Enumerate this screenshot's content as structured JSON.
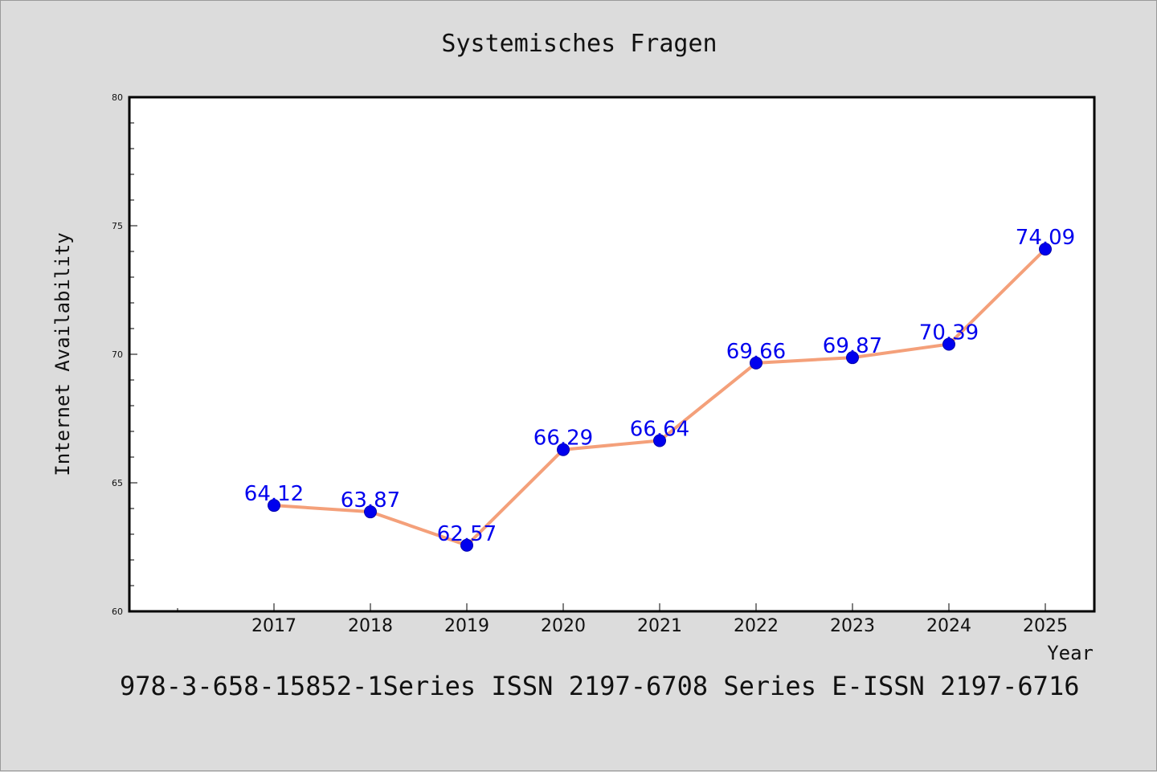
{
  "chart_data": {
    "type": "line",
    "title": "Systemisches Fragen",
    "xlabel": "Year",
    "ylabel": "Internet Availability",
    "categories": [
      "2017",
      "2018",
      "2019",
      "2020",
      "2021",
      "2022",
      "2023",
      "2024",
      "2025"
    ],
    "series": [
      {
        "values": [
          64.12,
          63.87,
          62.57,
          66.29,
          66.64,
          69.66,
          69.87,
          70.39,
          74.09
        ],
        "labels": [
          "64.12",
          "63.87",
          "62.57",
          "66.29",
          "66.64",
          "69.66",
          "69.87",
          "70.39",
          "74.09"
        ],
        "line_color": "#f4a07a",
        "marker_color": "#0000ee",
        "label_color": "#0000ee"
      }
    ],
    "ylim": [
      60,
      80
    ],
    "yticks": [
      "60",
      "65",
      "70",
      "75",
      "80"
    ],
    "grid": false
  },
  "footer": {
    "text": "978-3-658-15852-1Series ISSN 2197-6708 Series E-ISSN 2197-6716"
  },
  "colors": {
    "background": "#dcdcdc",
    "plot_background": "#ffffff"
  }
}
